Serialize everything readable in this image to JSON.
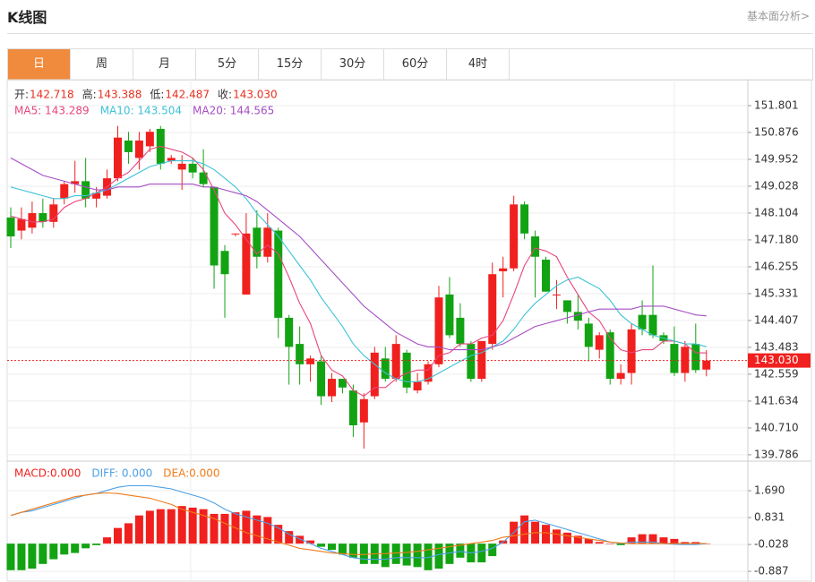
{
  "header": {
    "title": "K线图",
    "link": "基本面分析>"
  },
  "tabs": [
    "日",
    "周",
    "月",
    "5分",
    "15分",
    "30分",
    "60分",
    "4时"
  ],
  "info": [
    {
      "label": "开:",
      "value": "142.718"
    },
    {
      "label": "高:",
      "value": "143.388"
    },
    {
      "label": "低:",
      "value": "142.487"
    },
    {
      "label": "收:",
      "value": "143.030"
    }
  ],
  "chart_data": [
    {
      "type": "candlestick",
      "ylim": [
        139.66,
        152.6
      ],
      "yticks": [
        151.801,
        150.876,
        149.952,
        149.028,
        148.104,
        {
          "value": 147.18,
          "label": "147.180"
        },
        146.255,
        145.331,
        144.407,
        143.483,
        142.559,
        141.634,
        {
          "value": 140.71,
          "label": "140.710"
        },
        139.786
      ],
      "price_line": {
        "value": 143.03,
        "label": "143.030"
      },
      "open": [
        147.95,
        147.5,
        147.6,
        148.1,
        147.8,
        148.6,
        149.1,
        149.2,
        148.6,
        148.7,
        149.3,
        150.6,
        150.0,
        150.4,
        151.0,
        149.9,
        149.6,
        149.8,
        149.5,
        149.0,
        146.8,
        147.4,
        145.3,
        147.6,
        146.6,
        147.5,
        144.5,
        143.6,
        142.9,
        143.0,
        141.8,
        142.4,
        142.0,
        140.9,
        141.8,
        143.1,
        142.4,
        143.3,
        142.0,
        142.3,
        142.9,
        145.3,
        144.5,
        143.6,
        142.4,
        143.6,
        146.1,
        146.2,
        148.4,
        147.3,
        146.5,
        145.3,
        145.1,
        144.7,
        144.3,
        143.4,
        144.0,
        142.4,
        142.6,
        144.6,
        144.6,
        143.9,
        143.6,
        142.6,
        143.6,
        142.718
      ],
      "high": [
        148.3,
        148.3,
        148.5,
        148.6,
        148.6,
        149.2,
        149.9,
        150.0,
        149.0,
        149.6,
        151.1,
        150.9,
        150.9,
        151.0,
        151.1,
        150.1,
        150.1,
        150.0,
        150.3,
        149.0,
        147.0,
        147.4,
        148.1,
        148.2,
        148.1,
        147.6,
        144.6,
        144.2,
        143.2,
        143.2,
        142.6,
        142.4,
        142.2,
        141.9,
        143.5,
        143.5,
        143.9,
        143.4,
        142.6,
        143.0,
        145.6,
        145.9,
        145.0,
        143.7,
        143.7,
        146.4,
        146.6,
        148.7,
        148.5,
        147.5,
        146.6,
        145.8,
        145.1,
        145.3,
        144.5,
        144.0,
        144.1,
        142.9,
        144.3,
        145.1,
        146.3,
        144.0,
        144.2,
        143.7,
        144.3,
        143.388
      ],
      "low": [
        146.9,
        147.2,
        147.4,
        147.6,
        147.6,
        148.4,
        148.8,
        148.3,
        148.3,
        148.6,
        149.2,
        149.8,
        149.6,
        150.2,
        149.6,
        149.8,
        148.9,
        149.3,
        149.0,
        145.5,
        144.5,
        147.3,
        145.3,
        146.2,
        146.4,
        143.8,
        142.2,
        142.2,
        142.3,
        141.5,
        141.6,
        141.9,
        140.4,
        140.0,
        141.7,
        142.3,
        142.3,
        141.9,
        141.9,
        142.2,
        142.8,
        143.8,
        143.5,
        142.3,
        142.3,
        143.4,
        145.2,
        146.1,
        147.2,
        145.2,
        145.4,
        144.8,
        144.3,
        144.1,
        143.0,
        143.1,
        142.2,
        142.2,
        142.2,
        143.9,
        143.8,
        143.6,
        142.5,
        142.3,
        142.6,
        142.487
      ],
      "close": [
        147.3,
        147.9,
        148.1,
        147.8,
        148.4,
        149.1,
        149.2,
        148.6,
        148.8,
        149.3,
        150.7,
        150.2,
        150.6,
        150.9,
        149.8,
        150.0,
        149.8,
        149.5,
        149.1,
        146.3,
        146.0,
        147.4,
        147.4,
        146.6,
        147.6,
        144.5,
        143.5,
        142.9,
        143.1,
        141.8,
        142.4,
        142.1,
        140.8,
        141.7,
        143.3,
        142.4,
        143.6,
        142.1,
        142.3,
        142.9,
        145.2,
        143.9,
        143.6,
        142.4,
        143.7,
        146.0,
        146.2,
        148.4,
        147.4,
        146.6,
        145.4,
        145.3,
        144.7,
        144.4,
        143.5,
        143.9,
        142.4,
        142.6,
        144.1,
        144.1,
        143.9,
        143.7,
        142.6,
        143.5,
        142.7,
        143.03
      ],
      "up_color": "#f0201e",
      "down_color": "#12a312",
      "series": [
        {
          "name": "MA5",
          "legend": "MA5: 143.289",
          "color": "#e8457f",
          "values": [
            148.0,
            147.9,
            147.8,
            147.8,
            147.9,
            148.3,
            148.5,
            148.6,
            148.8,
            149.0,
            149.3,
            149.5,
            149.9,
            150.3,
            150.4,
            150.3,
            150.2,
            150.0,
            149.6,
            148.9,
            148.1,
            147.7,
            147.2,
            146.7,
            147.0,
            146.7,
            145.9,
            145.0,
            144.3,
            143.2,
            142.7,
            142.5,
            142.0,
            141.8,
            142.1,
            142.1,
            142.4,
            142.6,
            142.7,
            142.7,
            143.2,
            143.3,
            143.6,
            143.6,
            143.8,
            143.9,
            144.4,
            145.3,
            146.3,
            146.9,
            146.8,
            146.6,
            145.9,
            145.3,
            144.7,
            144.4,
            143.8,
            143.4,
            143.3,
            143.4,
            143.4,
            143.7,
            143.7,
            143.6,
            143.3,
            143.289
          ]
        },
        {
          "name": "MA10",
          "legend": "MA10: 143.504",
          "color": "#3dc3d6",
          "values": [
            149.0,
            148.9,
            148.8,
            148.7,
            148.6,
            148.6,
            148.7,
            148.7,
            148.8,
            148.9,
            149.1,
            149.3,
            149.5,
            149.7,
            149.8,
            149.9,
            149.9,
            149.9,
            149.8,
            149.6,
            149.3,
            149.0,
            148.6,
            148.1,
            147.7,
            147.3,
            146.8,
            146.3,
            145.8,
            145.2,
            144.7,
            144.2,
            143.6,
            143.2,
            142.9,
            142.6,
            142.4,
            142.3,
            142.3,
            142.4,
            142.6,
            142.8,
            143.0,
            143.2,
            143.3,
            143.5,
            143.7,
            144.1,
            144.6,
            145.0,
            145.3,
            145.6,
            145.8,
            145.9,
            145.7,
            145.5,
            145.1,
            144.6,
            144.3,
            144.1,
            143.9,
            143.8,
            143.7,
            143.6,
            143.6,
            143.504
          ]
        },
        {
          "name": "MA20",
          "legend": "MA20: 144.565",
          "color": "#a64ec4",
          "values": [
            150.0,
            149.8,
            149.6,
            149.4,
            149.3,
            149.2,
            149.1,
            149.0,
            148.9,
            148.9,
            149.0,
            149.0,
            149.0,
            149.1,
            149.1,
            149.1,
            149.1,
            149.1,
            149.0,
            149.0,
            148.9,
            148.8,
            148.7,
            148.5,
            148.2,
            147.9,
            147.6,
            147.3,
            146.9,
            146.5,
            146.1,
            145.7,
            145.3,
            144.9,
            144.6,
            144.3,
            144.0,
            143.8,
            143.6,
            143.5,
            143.5,
            143.4,
            143.4,
            143.4,
            143.4,
            143.5,
            143.6,
            143.8,
            144.0,
            144.2,
            144.3,
            144.4,
            144.5,
            144.6,
            144.7,
            144.8,
            144.8,
            144.8,
            144.8,
            144.9,
            144.9,
            144.9,
            144.8,
            144.7,
            144.6,
            144.565
          ]
        }
      ]
    },
    {
      "type": "macd",
      "ylim": [
        -1.17,
        2.55
      ],
      "yticks": [
        {
          "value": 1.69,
          "label": "1.690"
        },
        0.831,
        -0.028,
        -0.887
      ],
      "histogram": {
        "name": "MACD",
        "legend": "MACD:0.000",
        "values": [
          -0.85,
          -0.85,
          -0.8,
          -0.65,
          -0.5,
          -0.35,
          -0.3,
          -0.15,
          -0.05,
          0.2,
          0.5,
          0.65,
          0.9,
          1.05,
          1.1,
          1.1,
          1.2,
          1.15,
          1.1,
          0.95,
          0.95,
          1.0,
          1.05,
          0.9,
          0.85,
          0.6,
          0.4,
          0.25,
          0.1,
          -0.1,
          -0.2,
          -0.35,
          -0.45,
          -0.65,
          -0.65,
          -0.75,
          -0.65,
          -0.7,
          -0.75,
          -0.85,
          -0.8,
          -0.65,
          -0.45,
          -0.6,
          -0.6,
          -0.4,
          0.1,
          0.7,
          0.9,
          0.7,
          0.6,
          0.45,
          0.35,
          0.25,
          0.15,
          0.05,
          0.0,
          -0.05,
          0.2,
          0.3,
          0.3,
          0.2,
          0.15,
          0.05,
          0.05,
          0.0
        ]
      },
      "series": [
        {
          "name": "DIFF",
          "legend": "DIFF: 0.000",
          "color": "#4a9fe6",
          "values": [
            0.9,
            1.0,
            1.05,
            1.15,
            1.25,
            1.35,
            1.45,
            1.55,
            1.6,
            1.7,
            1.8,
            1.85,
            1.85,
            1.85,
            1.8,
            1.75,
            1.65,
            1.55,
            1.45,
            1.3,
            1.1,
            0.95,
            0.85,
            0.75,
            0.65,
            0.5,
            0.3,
            0.15,
            0.0,
            -0.15,
            -0.25,
            -0.35,
            -0.45,
            -0.5,
            -0.5,
            -0.5,
            -0.45,
            -0.45,
            -0.45,
            -0.45,
            -0.35,
            -0.3,
            -0.25,
            -0.3,
            -0.25,
            -0.15,
            0.05,
            0.35,
            0.7,
            0.75,
            0.65,
            0.55,
            0.45,
            0.35,
            0.25,
            0.15,
            0.05,
            0.0,
            0.05,
            0.05,
            0.05,
            0.0,
            -0.02,
            -0.03,
            -0.03,
            0.0
          ]
        },
        {
          "name": "DEA",
          "legend": "DEA:0.000",
          "color": "#f07b1a",
          "values": [
            0.9,
            1.0,
            1.1,
            1.2,
            1.3,
            1.4,
            1.5,
            1.55,
            1.6,
            1.62,
            1.6,
            1.55,
            1.5,
            1.45,
            1.35,
            1.25,
            1.1,
            1.0,
            0.9,
            0.8,
            0.65,
            0.5,
            0.35,
            0.25,
            0.15,
            0.05,
            -0.05,
            -0.15,
            -0.2,
            -0.25,
            -0.3,
            -0.32,
            -0.35,
            -0.35,
            -0.33,
            -0.32,
            -0.3,
            -0.28,
            -0.25,
            -0.2,
            -0.15,
            -0.1,
            -0.05,
            0.0,
            0.05,
            0.1,
            0.2,
            0.25,
            0.3,
            0.35,
            0.35,
            0.3,
            0.25,
            0.2,
            0.15,
            0.1,
            0.05,
            0.02,
            0.0,
            0.0,
            0.0,
            0.0,
            0.0,
            0.0,
            0.0,
            0.0
          ]
        }
      ]
    }
  ]
}
